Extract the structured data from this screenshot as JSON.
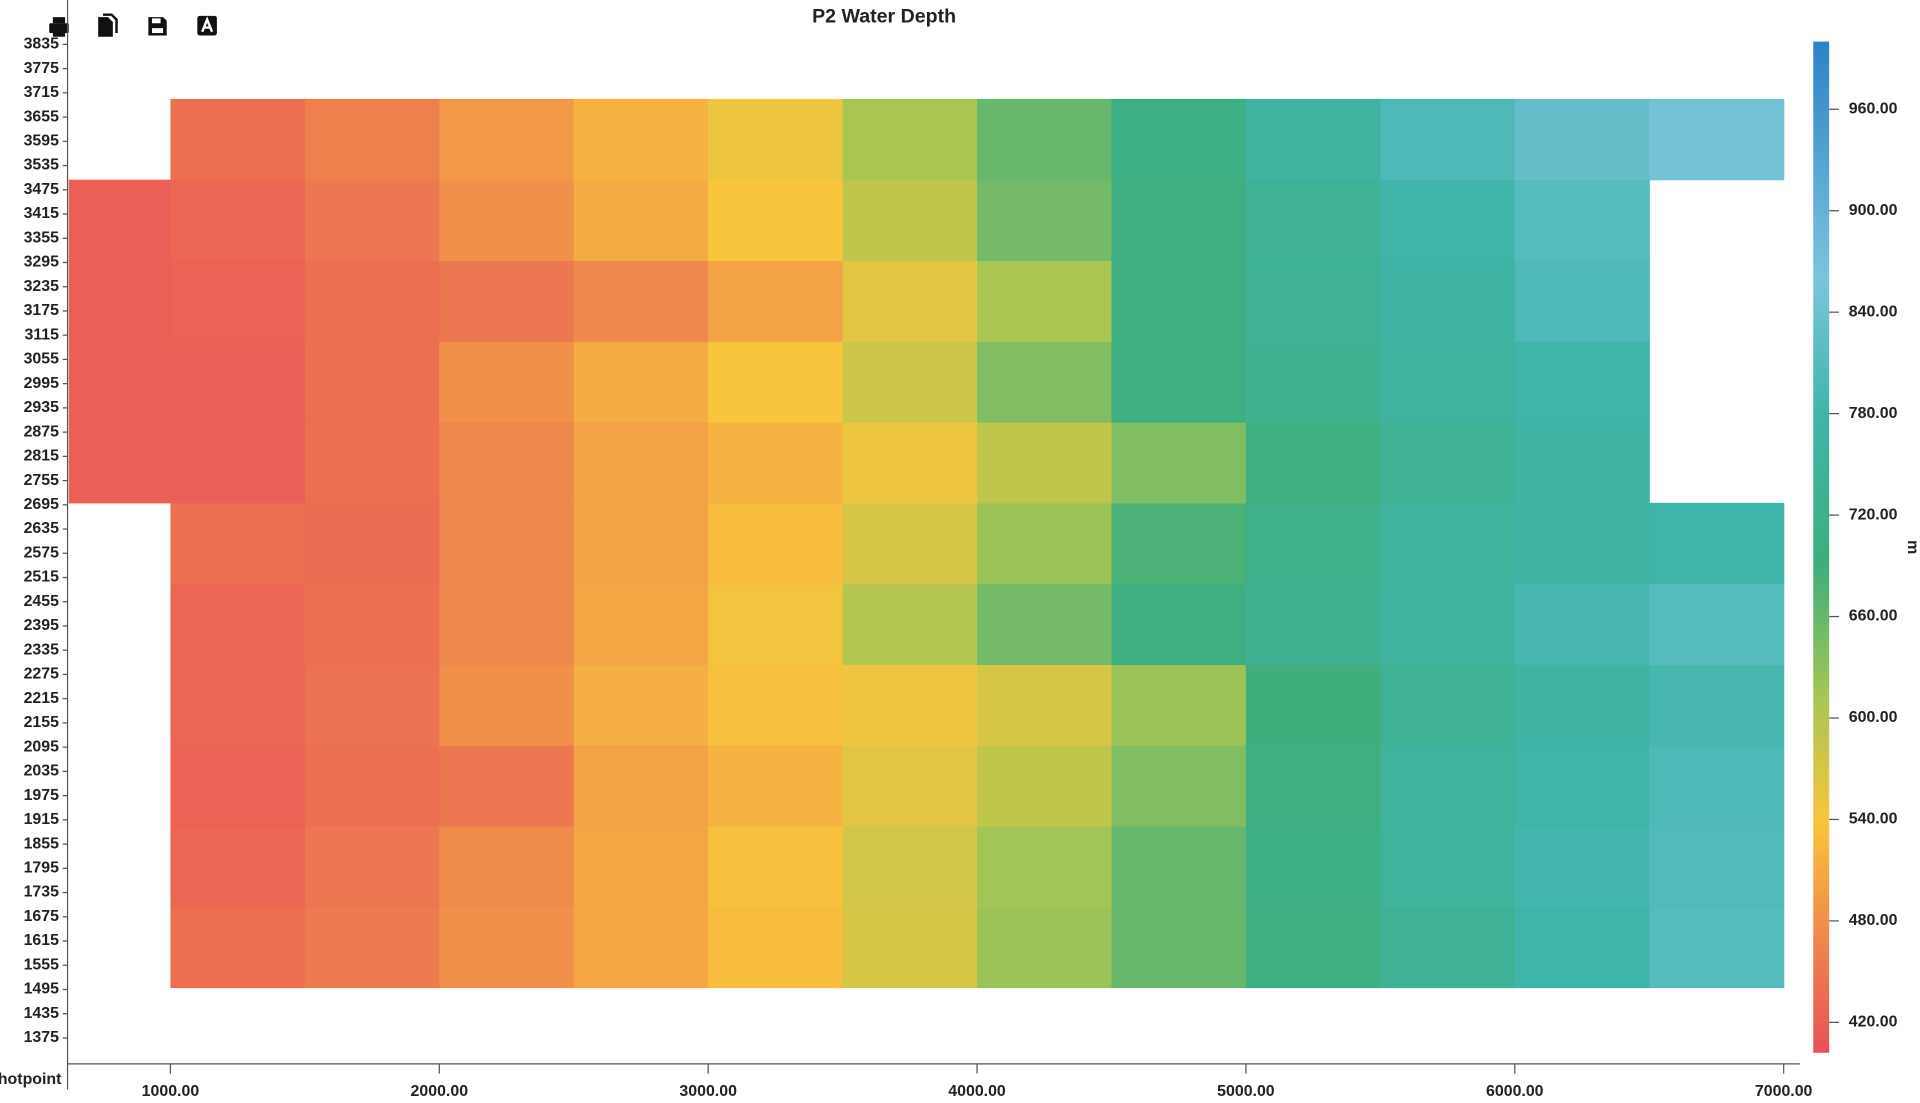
{
  "chart_data": {
    "type": "heatmap",
    "title": "P2 Water Depth",
    "x_label": "Shotpoint",
    "colorbar_label": "m",
    "x": [
      750,
      1250,
      1750,
      2250,
      2750,
      3250,
      3750,
      4250,
      4750,
      5250,
      5750,
      6250,
      6750
    ],
    "y": [
      1600,
      1800,
      2000,
      2200,
      2400,
      2600,
      2800,
      3000,
      3200,
      3400,
      3600
    ],
    "z": [
      [
        null,
        440,
        455,
        480,
        505,
        530,
        570,
        620,
        660,
        700,
        740,
        780,
        810
      ],
      [
        null,
        430,
        450,
        475,
        505,
        535,
        575,
        615,
        660,
        710,
        750,
        785,
        805
      ],
      [
        null,
        425,
        440,
        450,
        500,
        520,
        560,
        590,
        640,
        700,
        750,
        780,
        800
      ],
      [
        null,
        430,
        445,
        480,
        515,
        535,
        550,
        570,
        620,
        690,
        740,
        770,
        790
      ],
      [
        null,
        430,
        440,
        470,
        505,
        545,
        600,
        650,
        700,
        730,
        760,
        790,
        810
      ],
      [
        null,
        440,
        435,
        470,
        500,
        530,
        570,
        620,
        680,
        720,
        750,
        770,
        780
      ],
      [
        420,
        420,
        440,
        470,
        500,
        520,
        550,
        590,
        640,
        700,
        740,
        770,
        null
      ],
      [
        420,
        420,
        440,
        480,
        510,
        540,
        580,
        640,
        700,
        730,
        760,
        780,
        null
      ],
      [
        420,
        425,
        440,
        450,
        470,
        500,
        560,
        610,
        700,
        740,
        770,
        800,
        null
      ],
      [
        420,
        430,
        450,
        480,
        510,
        540,
        590,
        650,
        700,
        740,
        780,
        810,
        null
      ],
      [
        null,
        440,
        460,
        490,
        520,
        550,
        610,
        660,
        710,
        760,
        800,
        830,
        850
      ]
    ],
    "xlim": [
      622,
      7060
    ],
    "ylim": [
      1314,
      3860
    ],
    "xticks": [
      {
        "value": 1000,
        "label": "1000.00"
      },
      {
        "value": 2000,
        "label": "2000.00"
      },
      {
        "value": 3000,
        "label": "3000.00"
      },
      {
        "value": 4000,
        "label": "4000.00"
      },
      {
        "value": 5000,
        "label": "5000.00"
      },
      {
        "value": 6000,
        "label": "6000.00"
      },
      {
        "value": 7000,
        "label": "7000.00"
      }
    ],
    "yticks": [
      3835,
      3775,
      3715,
      3655,
      3595,
      3535,
      3475,
      3415,
      3355,
      3295,
      3235,
      3175,
      3115,
      3055,
      2995,
      2935,
      2875,
      2815,
      2755,
      2695,
      2635,
      2575,
      2515,
      2455,
      2395,
      2335,
      2275,
      2215,
      2155,
      2095,
      2035,
      1975,
      1915,
      1855,
      1795,
      1735,
      1675,
      1615,
      1555,
      1495,
      1435,
      1375
    ],
    "clim": [
      402,
      1000
    ],
    "cticks": [
      {
        "value": 420,
        "label": "420.00"
      },
      {
        "value": 480,
        "label": "480.00"
      },
      {
        "value": 540,
        "label": "540.00"
      },
      {
        "value": 600,
        "label": "600.00"
      },
      {
        "value": 660,
        "label": "660.00"
      },
      {
        "value": 720,
        "label": "720.00"
      },
      {
        "value": 780,
        "label": "780.00"
      },
      {
        "value": 840,
        "label": "840.00"
      },
      {
        "value": 900,
        "label": "900.00"
      },
      {
        "value": 960,
        "label": "960.00"
      }
    ],
    "colorscale": [
      [
        402,
        "#e8505a"
      ],
      [
        480,
        "#f0904a"
      ],
      [
        540,
        "#f9c53c"
      ],
      [
        610,
        "#a9c653"
      ],
      [
        690,
        "#3fae7c"
      ],
      [
        780,
        "#3fb5aa"
      ],
      [
        860,
        "#7cc4dc"
      ],
      [
        1000,
        "#2e82c6"
      ]
    ]
  }
}
